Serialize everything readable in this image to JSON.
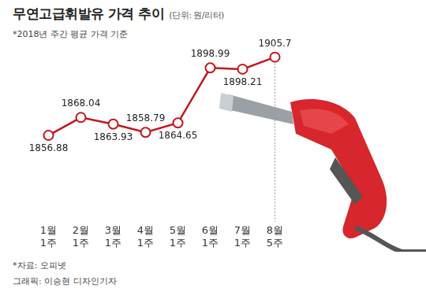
{
  "chart_data": {
    "type": "line",
    "title": "무연고급휘발유 가격 추이",
    "unit": "(단위: 원/리터)",
    "subtitle": "*2018년 주간 평균 가격 기준",
    "notes": [
      "*자료: 오피넷",
      "그래픽: 이승현 디자인기자"
    ],
    "categories": [
      "1월 1주",
      "2월 1주",
      "3월 1주",
      "4월 1주",
      "5월 1주",
      "6월 1주",
      "7월 1주",
      "8월 5주"
    ],
    "values": [
      1856.88,
      1868.04,
      1863.93,
      1858.79,
      1864.65,
      1898.99,
      1898.21,
      1905.7
    ],
    "color": "#c4161c",
    "ylim": [
      1805,
      1907
    ],
    "grid": false,
    "data_labels": true,
    "tick_labels": "x",
    "marker": "circle"
  }
}
